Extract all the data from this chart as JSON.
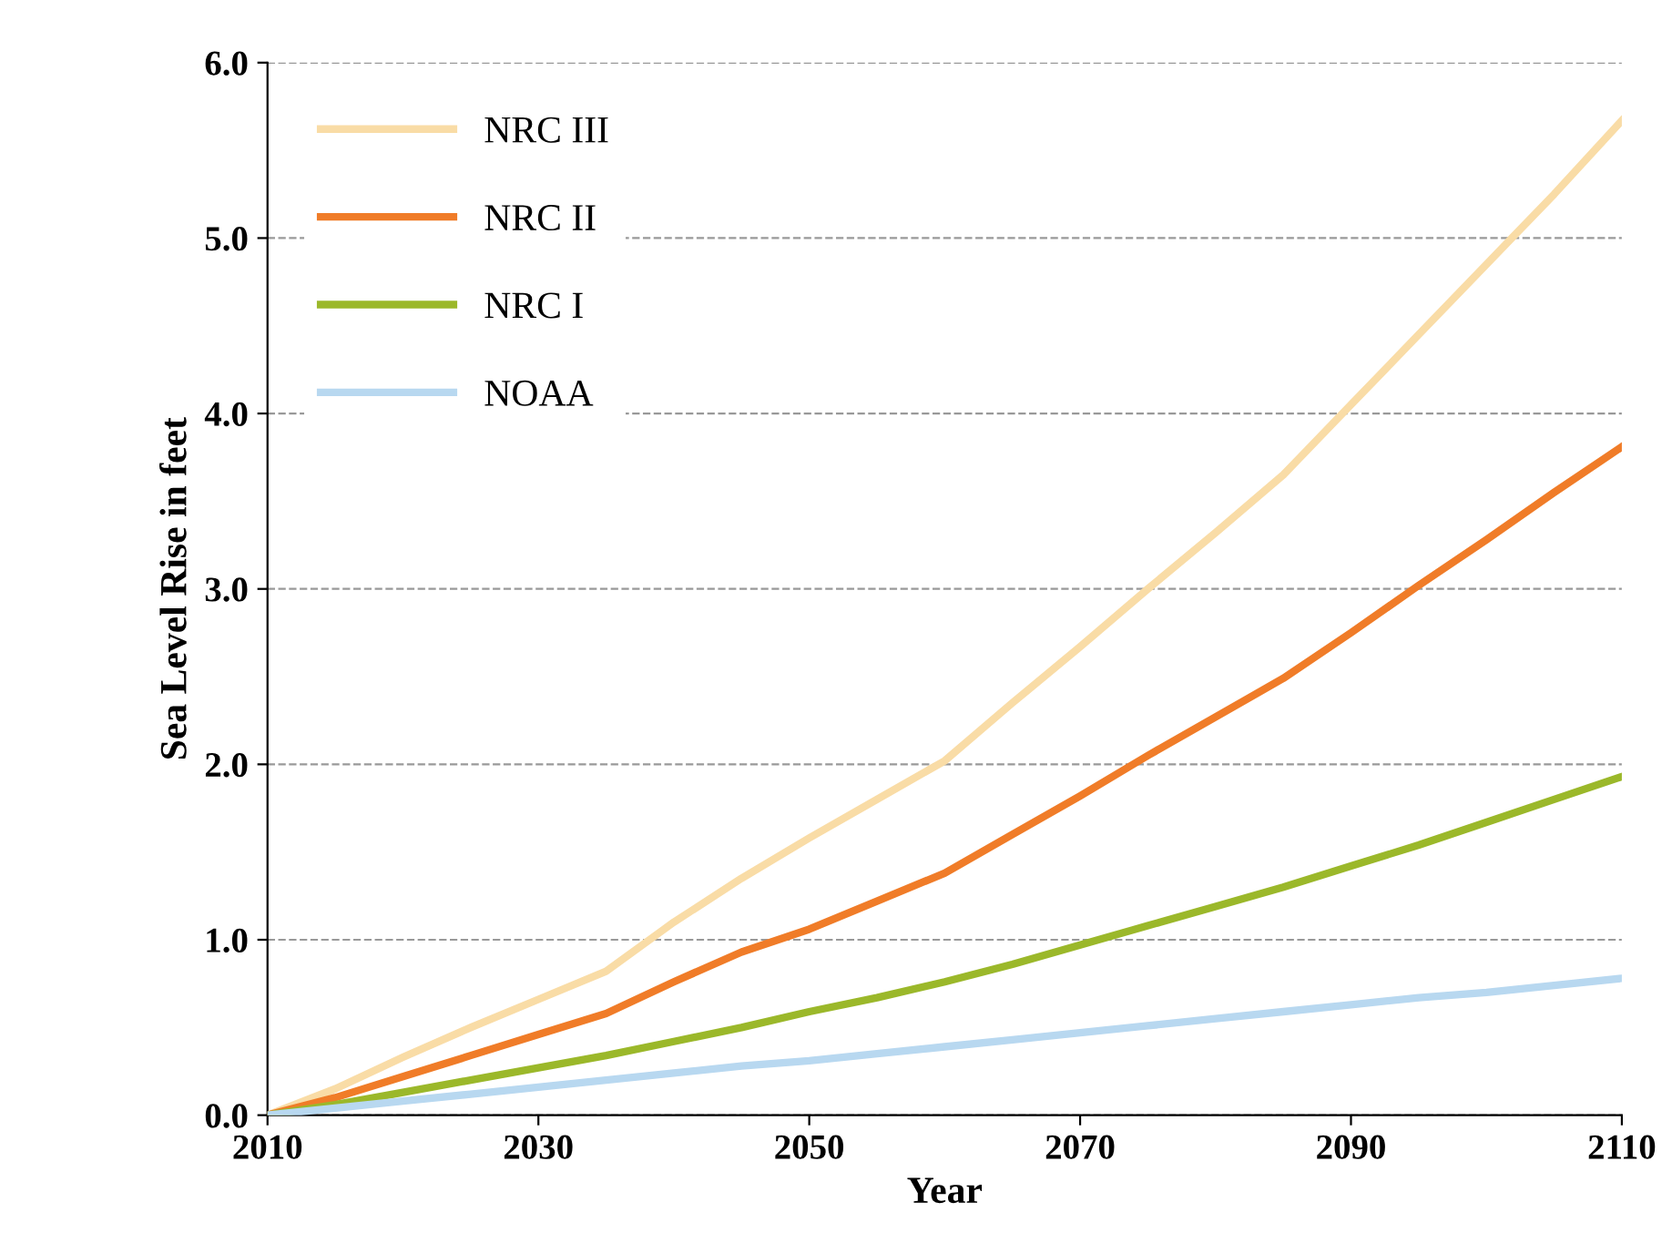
{
  "chart_data": {
    "type": "line",
    "xlabel": "Year",
    "ylabel": "Sea Level Rise in feet",
    "x": [
      2010,
      2015,
      2020,
      2025,
      2030,
      2035,
      2040,
      2045,
      2050,
      2055,
      2060,
      2065,
      2070,
      2075,
      2080,
      2085,
      2090,
      2095,
      2100,
      2105,
      2110
    ],
    "series": [
      {
        "name": "NRC III",
        "color": "#f9dca6",
        "values": [
          0,
          0.15,
          0.33,
          0.5,
          0.66,
          0.82,
          1.1,
          1.35,
          1.58,
          1.8,
          2.02,
          2.35,
          2.67,
          3.0,
          3.32,
          3.65,
          4.05,
          4.45,
          4.85,
          5.25,
          5.67
        ]
      },
      {
        "name": "NRC II",
        "color": "#f07c28",
        "values": [
          0,
          0.1,
          0.22,
          0.34,
          0.46,
          0.58,
          0.76,
          0.93,
          1.06,
          1.22,
          1.38,
          1.6,
          1.82,
          2.05,
          2.27,
          2.49,
          2.75,
          3.02,
          3.28,
          3.55,
          3.81
        ]
      },
      {
        "name": "NRC I",
        "color": "#9bb82a",
        "values": [
          0,
          0.06,
          0.13,
          0.2,
          0.27,
          0.34,
          0.42,
          0.5,
          0.59,
          0.67,
          0.76,
          0.86,
          0.97,
          1.08,
          1.19,
          1.3,
          1.42,
          1.54,
          1.67,
          1.8,
          1.93
        ]
      },
      {
        "name": "NOAA",
        "color": "#b8d8f0",
        "values": [
          0,
          0.04,
          0.08,
          0.12,
          0.16,
          0.2,
          0.24,
          0.28,
          0.31,
          0.35,
          0.39,
          0.43,
          0.47,
          0.51,
          0.55,
          0.59,
          0.63,
          0.67,
          0.7,
          0.74,
          0.78
        ]
      }
    ],
    "xlim": [
      2010,
      2110
    ],
    "xticks": [
      2010,
      2030,
      2050,
      2070,
      2090,
      2110
    ],
    "ylim": [
      0,
      6
    ],
    "yticks": [
      {
        "value": 0,
        "label": "0.0"
      },
      {
        "value": 1,
        "label": "1.0"
      },
      {
        "value": 2,
        "label": "2.0"
      },
      {
        "value": 3,
        "label": "3.0"
      },
      {
        "value": 4,
        "label": "4.0"
      },
      {
        "value": 5,
        "label": "5.0"
      },
      {
        "value": 6,
        "label": "6.0"
      }
    ],
    "grid": "y",
    "legend": "top left",
    "marker": "none",
    "line_style": "solid"
  }
}
